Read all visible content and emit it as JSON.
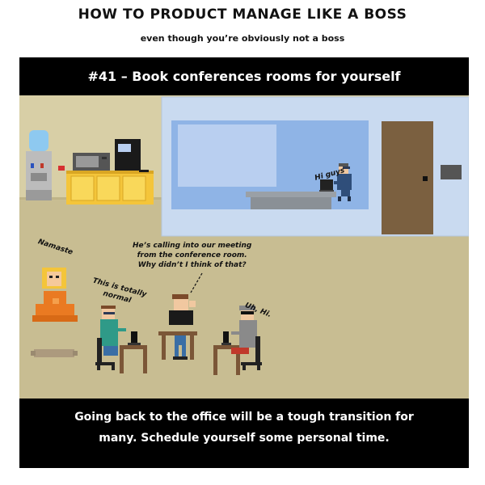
{
  "header": {
    "title": "HOW TO PRODUCT MANAGE LIKE A BOSS",
    "subtitle": "even though you’re obviously not a boss"
  },
  "panel": {
    "heading": "#41 – Book conferences rooms for yourself",
    "footer_line1": "Going back to the office will be a tough transition for",
    "footer_line2": "many. Schedule yourself some personal time."
  },
  "dialogue": {
    "hi_guys": "Hi guys",
    "namaste": "Namaste",
    "calling_line1": "He’s calling into our meeting",
    "calling_line2": "from the conference room.",
    "calling_line3": "Why didn’t I think of that?",
    "normal_line1": "This is totally",
    "normal_line2": "normal",
    "uh_hi": "Uh, Hi."
  },
  "colors": {
    "wall": "#d8cfa6",
    "floor": "#c8bd92",
    "conference_room": "#c9daf0",
    "window": "#8fb4e6",
    "door": "#7b6040",
    "cabinet": "#f4c53a"
  }
}
